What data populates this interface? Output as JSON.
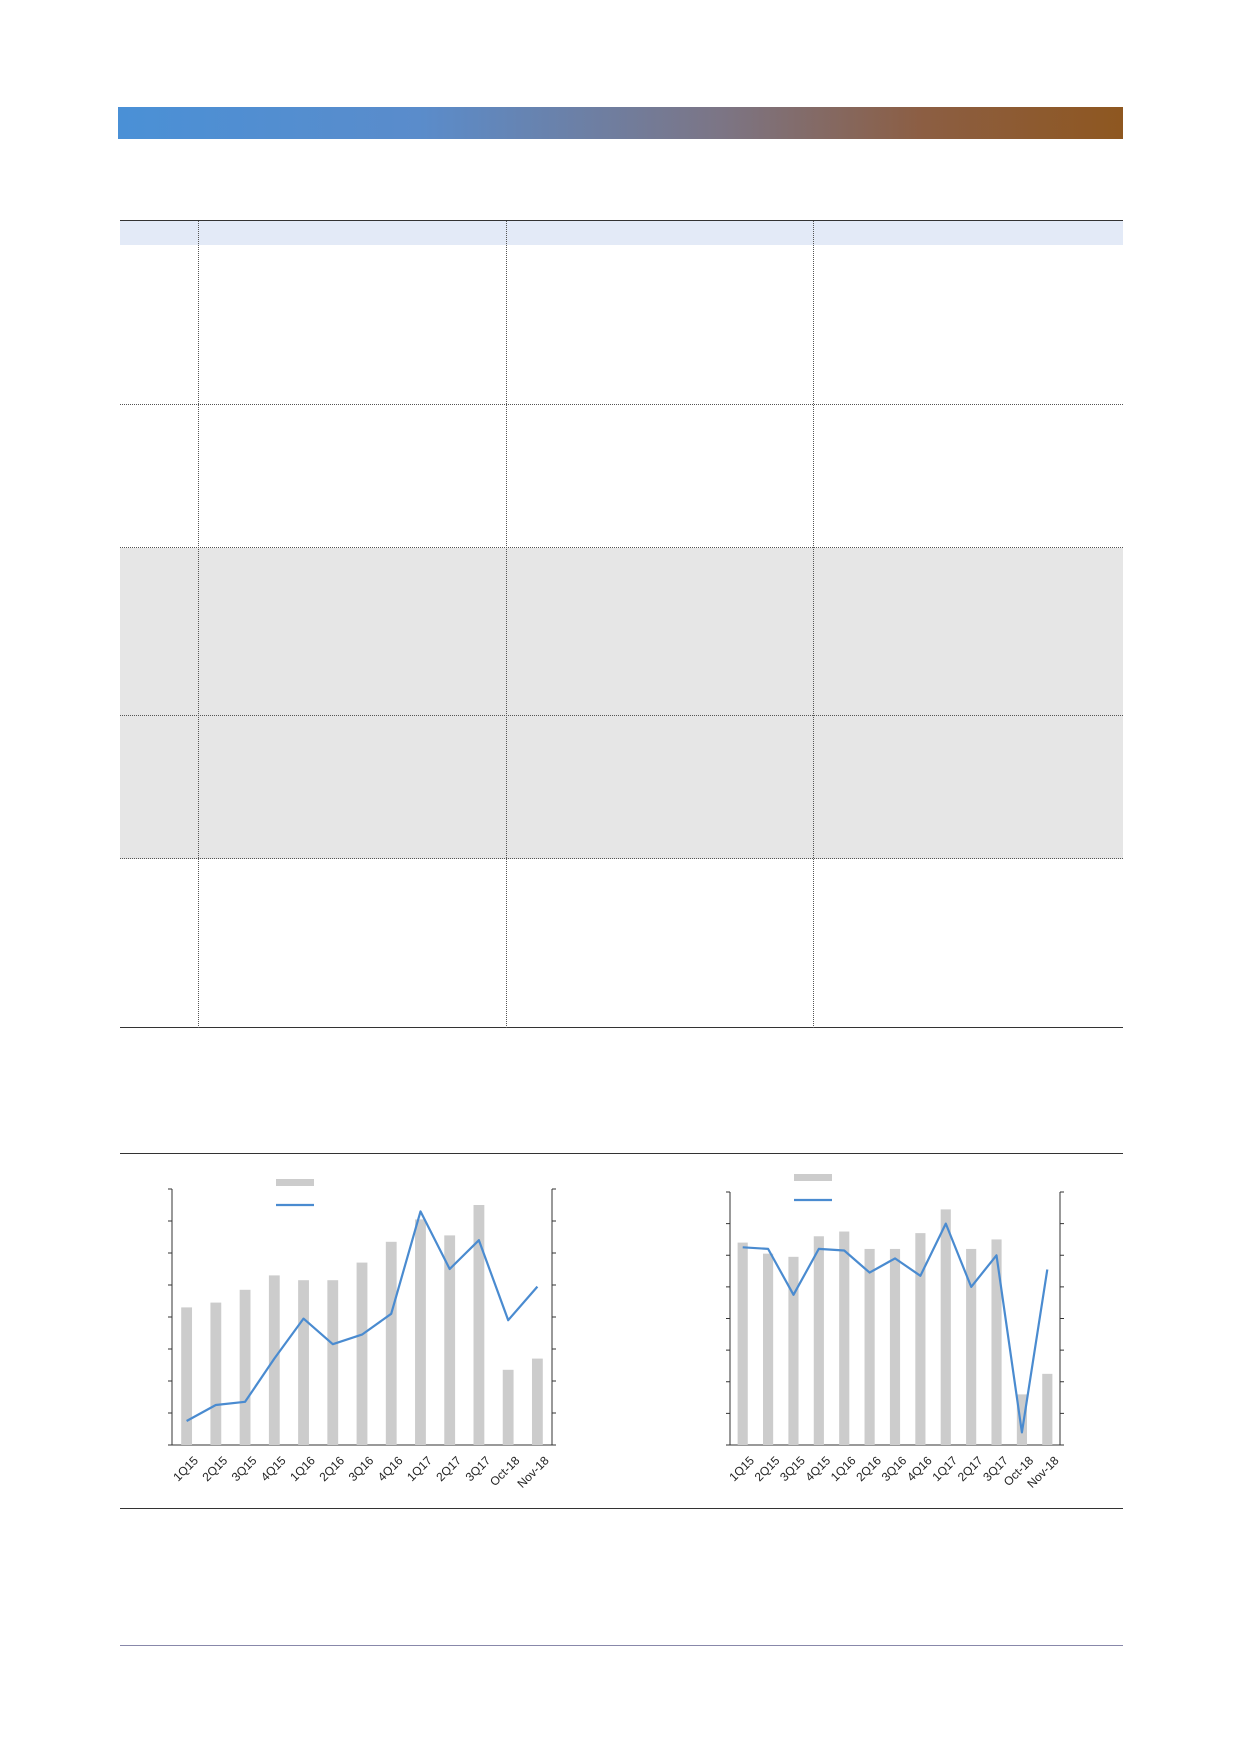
{
  "colors": {
    "banner_start": "#4a90d6",
    "banner_end": "#8e5720",
    "table_header": "#e3eaf7",
    "row_shade": "#e6e6e6",
    "bar": "#cccccc",
    "line": "#4a8bd0"
  },
  "table": {
    "columns": 4,
    "rows": [
      {
        "shaded": false
      },
      {
        "shaded": false
      },
      {
        "shaded": true
      },
      {
        "shaded": true
      },
      {
        "shaded": false
      }
    ]
  },
  "chart_data": [
    {
      "type": "bar",
      "categories": [
        "1Q15",
        "2Q15",
        "3Q15",
        "4Q15",
        "1Q16",
        "2Q16",
        "3Q16",
        "4Q16",
        "1Q17",
        "2Q17",
        "3Q17",
        "Oct-18",
        "Nov-18"
      ],
      "series": [
        {
          "kind": "bar",
          "values": [
            4.3,
            4.45,
            4.85,
            5.3,
            5.15,
            5.15,
            5.7,
            6.35,
            7.05,
            6.55,
            7.5,
            2.35,
            2.7
          ]
        },
        {
          "kind": "line",
          "values": [
            0.75,
            1.25,
            1.35,
            2.7,
            3.95,
            3.15,
            3.45,
            4.1,
            7.3,
            5.5,
            6.4,
            3.9,
            4.95
          ]
        }
      ],
      "title": "",
      "xlabel": "",
      "ylabel": "",
      "ylim": [
        0,
        8
      ],
      "y_ticks": 8,
      "grid": false,
      "legend": "top-left",
      "legend_entries": [
        "",
        ""
      ]
    },
    {
      "type": "bar",
      "categories": [
        "1Q15",
        "2Q15",
        "3Q15",
        "4Q15",
        "1Q16",
        "2Q16",
        "3Q16",
        "4Q16",
        "1Q17",
        "2Q17",
        "3Q17",
        "Oct-18",
        "Nov-18"
      ],
      "series": [
        {
          "kind": "bar",
          "values": [
            6.4,
            6.05,
            5.95,
            6.6,
            6.75,
            6.2,
            6.2,
            6.7,
            7.45,
            6.2,
            6.5,
            1.6,
            2.25
          ]
        },
        {
          "kind": "line",
          "values": [
            6.25,
            6.2,
            4.75,
            6.2,
            6.15,
            5.45,
            5.9,
            5.35,
            7.0,
            5.0,
            6.0,
            0.4,
            5.55
          ]
        }
      ],
      "title": "",
      "xlabel": "",
      "ylabel": "",
      "ylim": [
        0,
        8
      ],
      "y_ticks": 8,
      "grid": false,
      "legend": "top-left",
      "legend_entries": [
        "",
        ""
      ]
    }
  ]
}
